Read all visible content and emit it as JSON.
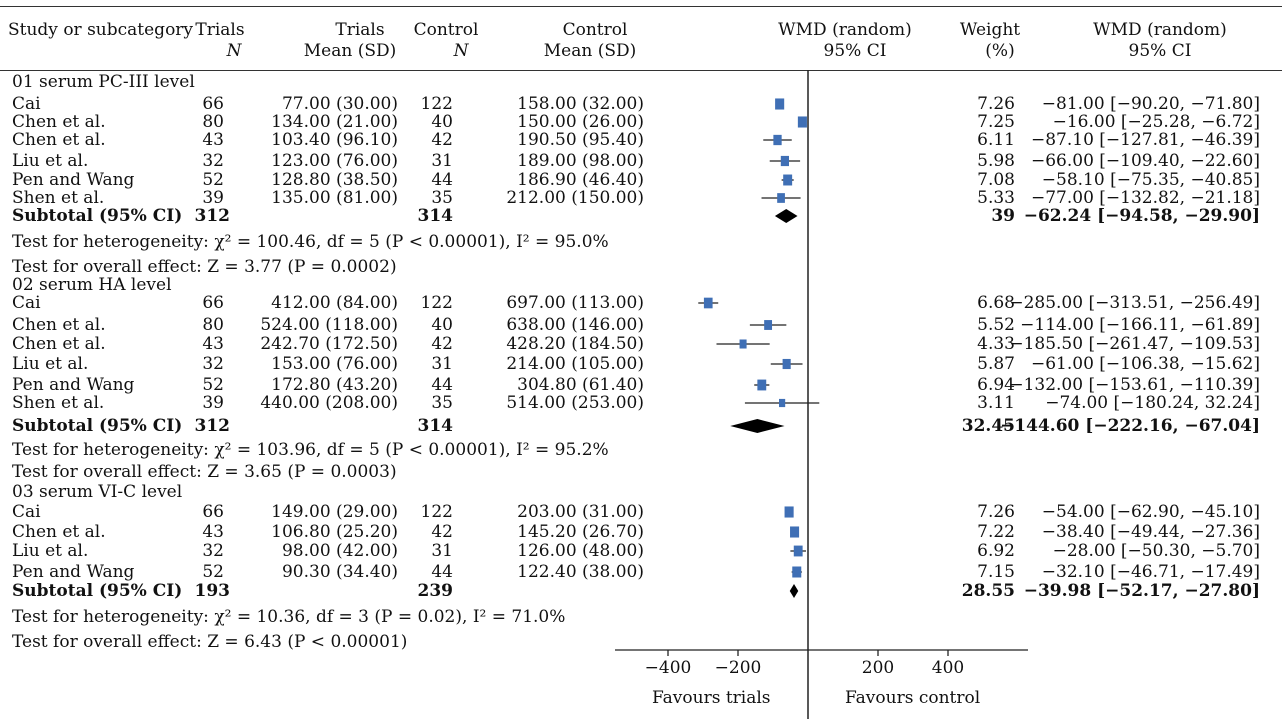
{
  "headers": {
    "study": "Study or subcategory",
    "trials_n_1": "Trials",
    "trials_n_2": "N",
    "trials_mean_1": "Trials",
    "trials_mean_2": "Mean (SD)",
    "control_n_1": "Control",
    "control_n_2": "N",
    "control_mean_1": "Control",
    "control_mean_2": "Mean (SD)",
    "wmd_plot_1": "WMD (random)",
    "wmd_plot_2": "95% CI",
    "weight_1": "Weight",
    "weight_2": "(%)",
    "wmd_ci_1": "WMD (random)",
    "wmd_ci_2": "95% CI"
  },
  "axis": {
    "ticks": [
      "−400",
      "−200",
      "200",
      "400"
    ],
    "left_label": "Favours trials",
    "right_label": "Favours control"
  },
  "chart_data": {
    "type": "forest",
    "xlim": [
      -520,
      620
    ],
    "groups": [
      {
        "title": "01 serum PC-III level",
        "studies": [
          {
            "name": "Cai",
            "tn": "66",
            "tmean": "77.00 (30.00)",
            "cn": "122",
            "cmean": "158.00 (32.00)",
            "weight": "7.26",
            "ci": "−81.00 [−90.20, −71.80]",
            "est": -81.0,
            "lo": -90.2,
            "hi": -71.8
          },
          {
            "name": "Chen et al.",
            "tn": "80",
            "tmean": "134.00 (21.00)",
            "cn": "40",
            "cmean": "150.00 (26.00)",
            "weight": "7.25",
            "ci": "−16.00 [−25.28, −6.72]",
            "est": -16.0,
            "lo": -25.28,
            "hi": -6.72
          },
          {
            "name": "Chen et al.",
            "tn": "43",
            "tmean": "103.40 (96.10)",
            "cn": "42",
            "cmean": "190.50 (95.40)",
            "weight": "6.11",
            "ci": "−87.10 [−127.81, −46.39]",
            "est": -87.1,
            "lo": -127.81,
            "hi": -46.39
          },
          {
            "name": "Liu et al.",
            "tn": "32",
            "tmean": "123.00 (76.00)",
            "cn": "31",
            "cmean": "189.00 (98.00)",
            "weight": "5.98",
            "ci": "−66.00 [−109.40, −22.60]",
            "est": -66.0,
            "lo": -109.4,
            "hi": -22.6
          },
          {
            "name": "Pen and Wang",
            "tn": "52",
            "tmean": "128.80 (38.50)",
            "cn": "44",
            "cmean": "186.90 (46.40)",
            "weight": "7.08",
            "ci": "−58.10 [−75.35, −40.85]",
            "est": -58.1,
            "lo": -75.35,
            "hi": -40.85
          },
          {
            "name": "Shen et al.",
            "tn": "39",
            "tmean": "135.00 (81.00)",
            "cn": "35",
            "cmean": "212.00 (150.00)",
            "weight": "5.33",
            "ci": "−77.00 [−132.82, −21.18]",
            "est": -77.0,
            "lo": -132.82,
            "hi": -21.18
          }
        ],
        "subtotal": {
          "label": "Subtotal (95% CI)",
          "tn": "312",
          "cn": "314",
          "weight": "39",
          "ci": "−62.24 [−94.58, −29.90]",
          "est": -62.24,
          "lo": -94.58,
          "hi": -29.9
        },
        "heterogeneity": "Test for heterogeneity: χ² = 100.46, df = 5 (P < 0.00001), I² = 95.0%",
        "overall": "Test for overall effect: Z = 3.77 (P = 0.0002)"
      },
      {
        "title": "02 serum HA level",
        "studies": [
          {
            "name": "Cai",
            "tn": "66",
            "tmean": "412.00 (84.00)",
            "cn": "122",
            "cmean": "697.00 (113.00)",
            "weight": "6.68",
            "ci": "−285.00 [−313.51, −256.49]",
            "est": -285.0,
            "lo": -313.51,
            "hi": -256.49
          },
          {
            "name": "Chen et al.",
            "tn": "80",
            "tmean": "524.00 (118.00)",
            "cn": "40",
            "cmean": "638.00 (146.00)",
            "weight": "5.52",
            "ci": "−114.00 [−166.11, −61.89]",
            "est": -114.0,
            "lo": -166.11,
            "hi": -61.89
          },
          {
            "name": "Chen et al.",
            "tn": "43",
            "tmean": "242.70 (172.50)",
            "cn": "42",
            "cmean": "428.20 (184.50)",
            "weight": "4.33",
            "ci": "−185.50 [−261.47, −109.53]",
            "est": -185.5,
            "lo": -261.47,
            "hi": -109.53
          },
          {
            "name": "Liu et al.",
            "tn": "32",
            "tmean": "153.00 (76.00)",
            "cn": "31",
            "cmean": "214.00 (105.00)",
            "weight": "5.87",
            "ci": "−61.00 [−106.38, −15.62]",
            "est": -61.0,
            "lo": -106.38,
            "hi": -15.62
          },
          {
            "name": "Pen and Wang",
            "tn": "52",
            "tmean": "172.80 (43.20)",
            "cn": "44",
            "cmean": "304.80 (61.40)",
            "weight": "6.94",
            "ci": "−132.00 [−153.61, −110.39]",
            "est": -132.0,
            "lo": -153.61,
            "hi": -110.39
          },
          {
            "name": "Shen et al.",
            "tn": "39",
            "tmean": "440.00 (208.00)",
            "cn": "35",
            "cmean": "514.00 (253.00)",
            "weight": "3.11",
            "ci": "−74.00 [−180.24, 32.24]",
            "est": -74.0,
            "lo": -180.24,
            "hi": 32.24
          }
        ],
        "subtotal": {
          "label": "Subtotal (95% CI)",
          "tn": "312",
          "cn": "314",
          "weight": "32.45",
          "ci": "−144.60 [−222.16, −67.04]",
          "est": -144.6,
          "lo": -222.16,
          "hi": -67.04
        },
        "heterogeneity": "Test for heterogeneity: χ² = 103.96, df = 5 (P < 0.00001), I² = 95.2%",
        "overall": "Test for overall effect: Z = 3.65 (P = 0.0003)"
      },
      {
        "title": "03 serum VI-C level",
        "studies": [
          {
            "name": "Cai",
            "tn": "66",
            "tmean": "149.00 (29.00)",
            "cn": "122",
            "cmean": "203.00 (31.00)",
            "weight": "7.26",
            "ci": "−54.00 [−62.90, −45.10]",
            "est": -54.0,
            "lo": -62.9,
            "hi": -45.1
          },
          {
            "name": "Chen et al.",
            "tn": "43",
            "tmean": "106.80 (25.20)",
            "cn": "42",
            "cmean": "145.20 (26.70)",
            "weight": "7.22",
            "ci": "−38.40 [−49.44, −27.36]",
            "est": -38.4,
            "lo": -49.44,
            "hi": -27.36
          },
          {
            "name": "Liu et al.",
            "tn": "32",
            "tmean": "98.00 (42.00)",
            "cn": "31",
            "cmean": "126.00 (48.00)",
            "weight": "6.92",
            "ci": "−28.00 [−50.30, −5.70]",
            "est": -28.0,
            "lo": -50.3,
            "hi": -5.7
          },
          {
            "name": "Pen and Wang",
            "tn": "52",
            "tmean": "90.30 (34.40)",
            "cn": "44",
            "cmean": "122.40 (38.00)",
            "weight": "7.15",
            "ci": "−32.10 [−46.71, −17.49]",
            "est": -32.1,
            "lo": -46.71,
            "hi": -17.49
          }
        ],
        "subtotal": {
          "label": "Subtotal (95% CI)",
          "tn": "193",
          "cn": "239",
          "weight": "28.55",
          "ci": "−39.98 [−52.17, −27.80]",
          "est": -39.98,
          "lo": -52.17,
          "hi": -27.8
        },
        "heterogeneity": "Test for heterogeneity: χ² = 10.36, df = 3 (P = 0.02), I² = 71.0%",
        "overall": "Test for overall effect: Z = 6.43 (P < 0.00001)"
      }
    ]
  },
  "colors": {
    "box": "#3f6fb5",
    "diamond": "#000000",
    "line": "#222222"
  }
}
